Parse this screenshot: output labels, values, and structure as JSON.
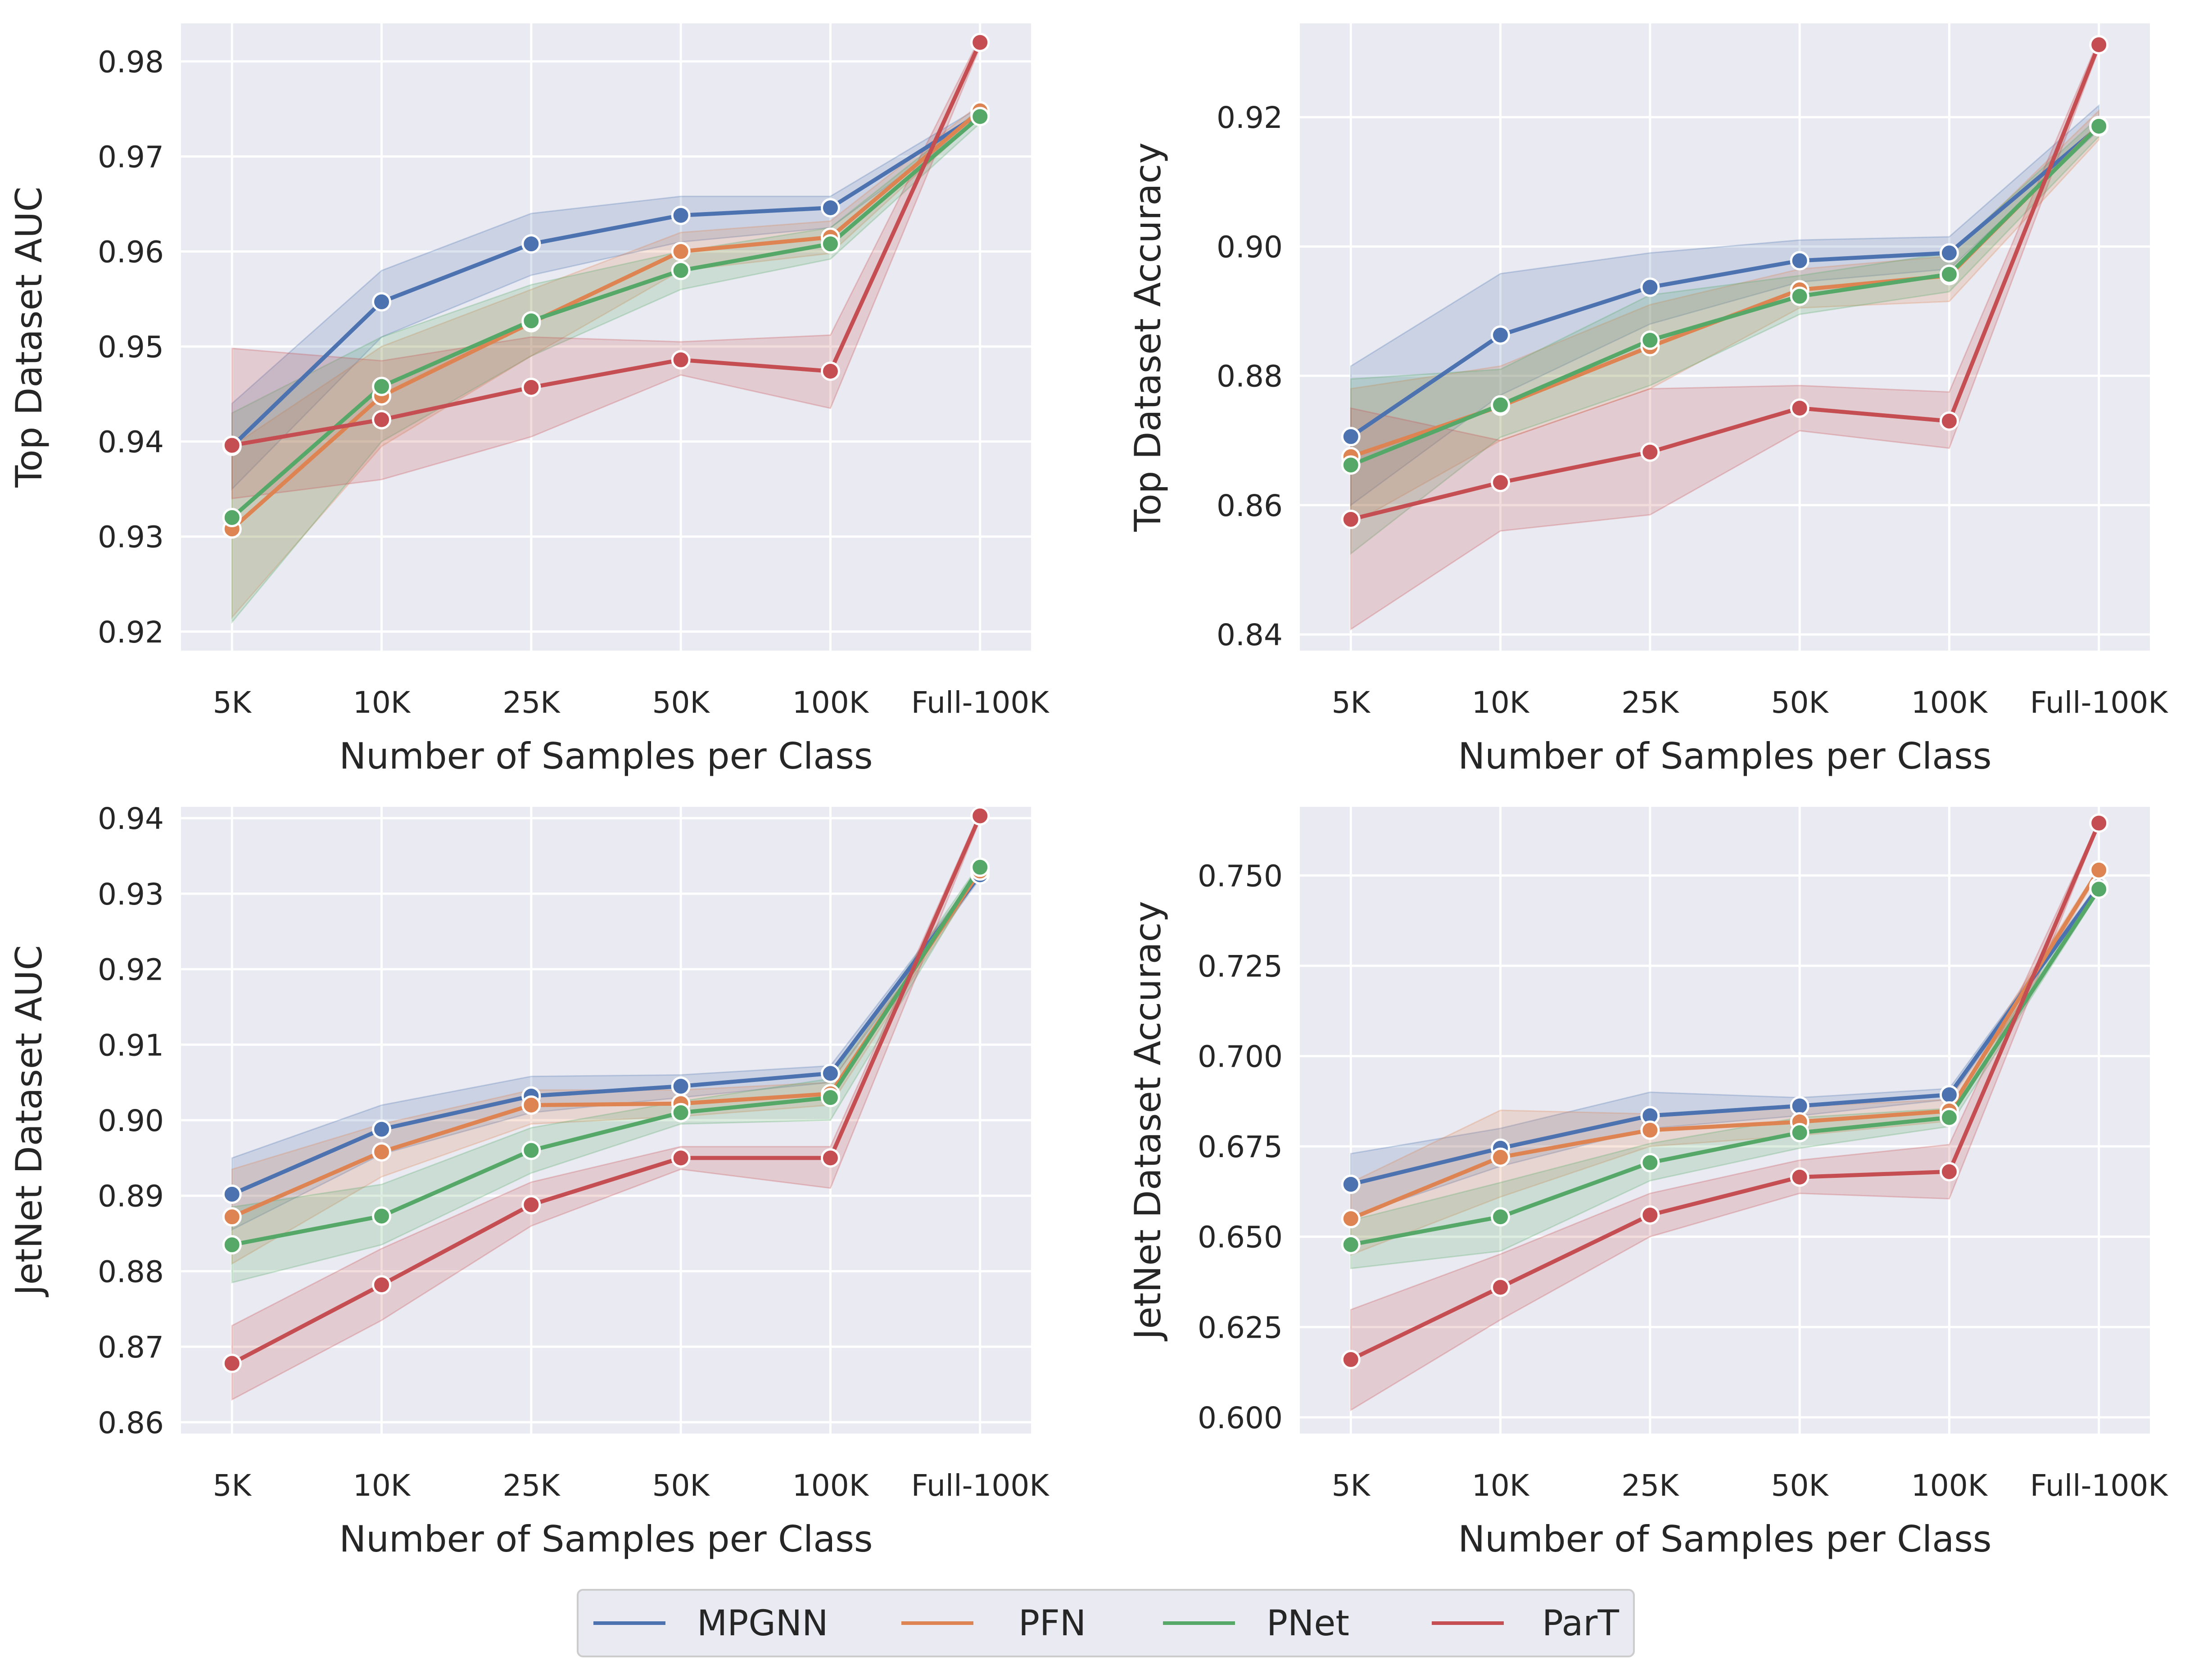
{
  "legend": {
    "placement": "bottom-center",
    "items": [
      {
        "name": "MPGNN",
        "color": "#4c72b0"
      },
      {
        "name": "PFN",
        "color": "#dd8452"
      },
      {
        "name": "PNet",
        "color": "#55a868"
      },
      {
        "name": "ParT",
        "color": "#c44e52"
      }
    ]
  },
  "chart_data": [
    {
      "type": "line",
      "xlabel": "Number of Samples per Class",
      "ylabel": "Top Dataset AUC",
      "categories": [
        "5K",
        "10K",
        "25K",
        "50K",
        "100K",
        "Full-100K"
      ],
      "ylim": [
        0.918,
        0.984
      ],
      "yticks": [
        "0.92",
        "0.93",
        "0.94",
        "0.95",
        "0.96",
        "0.97",
        "0.98"
      ],
      "grid": true,
      "series": [
        {
          "name": "MPGNN",
          "values": [
            0.9395,
            0.9547,
            0.9608,
            0.9638,
            0.9646,
            0.9745
          ],
          "lower": [
            0.935,
            0.951,
            0.9575,
            0.961,
            0.9625,
            0.974
          ],
          "upper": [
            0.944,
            0.958,
            0.964,
            0.9658,
            0.9658,
            0.9752
          ]
        },
        {
          "name": "PFN",
          "values": [
            0.9308,
            0.9448,
            0.9525,
            0.96,
            0.9615,
            0.9748
          ],
          "lower": [
            0.9215,
            0.9395,
            0.949,
            0.958,
            0.9598,
            0.9742
          ],
          "upper": [
            0.9395,
            0.95,
            0.956,
            0.962,
            0.9632,
            0.9755
          ]
        },
        {
          "name": "PNet",
          "values": [
            0.932,
            0.9458,
            0.9527,
            0.958,
            0.9608,
            0.9742
          ],
          "lower": [
            0.921,
            0.94,
            0.949,
            0.956,
            0.9592,
            0.9735
          ],
          "upper": [
            0.943,
            0.951,
            0.9565,
            0.96,
            0.9625,
            0.975
          ]
        },
        {
          "name": "ParT",
          "values": [
            0.9396,
            0.9423,
            0.9457,
            0.9486,
            0.9474,
            0.982
          ],
          "lower": [
            0.934,
            0.936,
            0.9405,
            0.947,
            0.9435,
            0.9815
          ],
          "upper": [
            0.9498,
            0.9485,
            0.951,
            0.9505,
            0.9512,
            0.9825
          ]
        }
      ]
    },
    {
      "type": "line",
      "xlabel": "Number of Samples per Class",
      "ylabel": "Top Dataset Accuracy",
      "categories": [
        "5K",
        "10K",
        "25K",
        "50K",
        "100K",
        "Full-100K"
      ],
      "ylim": [
        0.8375,
        0.9345
      ],
      "yticks": [
        "0.84",
        "0.86",
        "0.88",
        "0.90",
        "0.92"
      ],
      "grid": true,
      "series": [
        {
          "name": "MPGNN",
          "values": [
            0.8706,
            0.8863,
            0.8937,
            0.8978,
            0.899,
            0.9185
          ],
          "lower": [
            0.86,
            0.877,
            0.888,
            0.8945,
            0.8965,
            0.918
          ],
          "upper": [
            0.8815,
            0.8958,
            0.899,
            0.901,
            0.9015,
            0.9218
          ]
        },
        {
          "name": "PFN",
          "values": [
            0.8675,
            0.8753,
            0.8845,
            0.8933,
            0.8955,
            0.9187
          ],
          "lower": [
            0.857,
            0.87,
            0.878,
            0.8905,
            0.8915,
            0.9165
          ],
          "upper": [
            0.878,
            0.8815,
            0.891,
            0.8965,
            0.8985,
            0.921
          ]
        },
        {
          "name": "PNet",
          "values": [
            0.8662,
            0.8755,
            0.8855,
            0.8923,
            0.8957,
            0.9186
          ],
          "lower": [
            0.8525,
            0.8705,
            0.8785,
            0.8895,
            0.893,
            0.917
          ],
          "upper": [
            0.8795,
            0.881,
            0.8925,
            0.8955,
            0.899,
            0.92
          ]
        },
        {
          "name": "ParT",
          "values": [
            0.8578,
            0.8635,
            0.8682,
            0.875,
            0.873,
            0.9312
          ],
          "lower": [
            0.8408,
            0.856,
            0.8585,
            0.8715,
            0.8688,
            0.9305
          ],
          "upper": [
            0.875,
            0.87,
            0.878,
            0.8785,
            0.8775,
            0.932
          ]
        }
      ]
    },
    {
      "type": "line",
      "xlabel": "Number of Samples per Class",
      "ylabel": "JetNet Dataset AUC",
      "categories": [
        "5K",
        "10K",
        "25K",
        "50K",
        "100K",
        "Full-100K"
      ],
      "ylim": [
        0.8585,
        0.9415
      ],
      "yticks": [
        "0.86",
        "0.87",
        "0.88",
        "0.89",
        "0.90",
        "0.91",
        "0.92",
        "0.93",
        "0.94"
      ],
      "grid": true,
      "series": [
        {
          "name": "MPGNN",
          "values": [
            0.8902,
            0.8988,
            0.9032,
            0.9045,
            0.9062,
            0.9325
          ],
          "lower": [
            0.8855,
            0.8955,
            0.901,
            0.903,
            0.905,
            0.932
          ],
          "upper": [
            0.895,
            0.902,
            0.9058,
            0.906,
            0.9072,
            0.933
          ]
        },
        {
          "name": "PFN",
          "values": [
            0.8872,
            0.8958,
            0.902,
            0.9022,
            0.9035,
            0.933
          ],
          "lower": [
            0.881,
            0.8925,
            0.8995,
            0.9005,
            0.902,
            0.9325
          ],
          "upper": [
            0.8935,
            0.8995,
            0.904,
            0.904,
            0.905,
            0.9335
          ]
        },
        {
          "name": "PNet",
          "values": [
            0.8835,
            0.8873,
            0.896,
            0.901,
            0.903,
            0.9335
          ],
          "lower": [
            0.8785,
            0.8835,
            0.893,
            0.8995,
            0.9,
            0.933
          ],
          "upper": [
            0.8885,
            0.8915,
            0.899,
            0.9025,
            0.9055,
            0.934
          ]
        },
        {
          "name": "ParT",
          "values": [
            0.8678,
            0.8782,
            0.8888,
            0.895,
            0.895,
            0.9403
          ],
          "lower": [
            0.863,
            0.8735,
            0.886,
            0.8935,
            0.891,
            0.9398
          ],
          "upper": [
            0.8728,
            0.883,
            0.8918,
            0.8965,
            0.8965,
            0.9408
          ]
        }
      ]
    },
    {
      "type": "line",
      "xlabel": "Number of Samples per Class",
      "ylabel": "JetNet Dataset Accuracy",
      "categories": [
        "5K",
        "10K",
        "25K",
        "50K",
        "100K",
        "Full-100K"
      ],
      "ylim": [
        0.5955,
        0.769
      ],
      "yticks": [
        "0.600",
        "0.625",
        "0.650",
        "0.675",
        "0.700",
        "0.725",
        "0.750"
      ],
      "grid": true,
      "series": [
        {
          "name": "MPGNN",
          "values": [
            0.6645,
            0.6745,
            0.6835,
            0.6862,
            0.6893,
            0.747
          ],
          "lower": [
            0.6555,
            0.6695,
            0.68,
            0.6835,
            0.688,
            0.7465
          ],
          "upper": [
            0.673,
            0.68,
            0.69,
            0.6885,
            0.691,
            0.7478
          ]
        },
        {
          "name": "PFN",
          "values": [
            0.655,
            0.672,
            0.6795,
            0.6818,
            0.6848,
            0.7515
          ],
          "lower": [
            0.645,
            0.661,
            0.675,
            0.678,
            0.682,
            0.7505
          ],
          "upper": [
            0.665,
            0.685,
            0.684,
            0.686,
            0.688,
            0.7522
          ]
        },
        {
          "name": "PNet",
          "values": [
            0.6478,
            0.6555,
            0.6705,
            0.6788,
            0.683,
            0.7462
          ],
          "lower": [
            0.6412,
            0.646,
            0.6655,
            0.6745,
            0.6805,
            0.7455
          ],
          "upper": [
            0.6545,
            0.665,
            0.6758,
            0.683,
            0.6855,
            0.747
          ]
        },
        {
          "name": "ParT",
          "values": [
            0.616,
            0.636,
            0.656,
            0.6665,
            0.668,
            0.7645
          ],
          "lower": [
            0.602,
            0.627,
            0.65,
            0.662,
            0.6605,
            0.764
          ],
          "upper": [
            0.6298,
            0.6452,
            0.662,
            0.6712,
            0.6755,
            0.765
          ]
        }
      ]
    }
  ]
}
